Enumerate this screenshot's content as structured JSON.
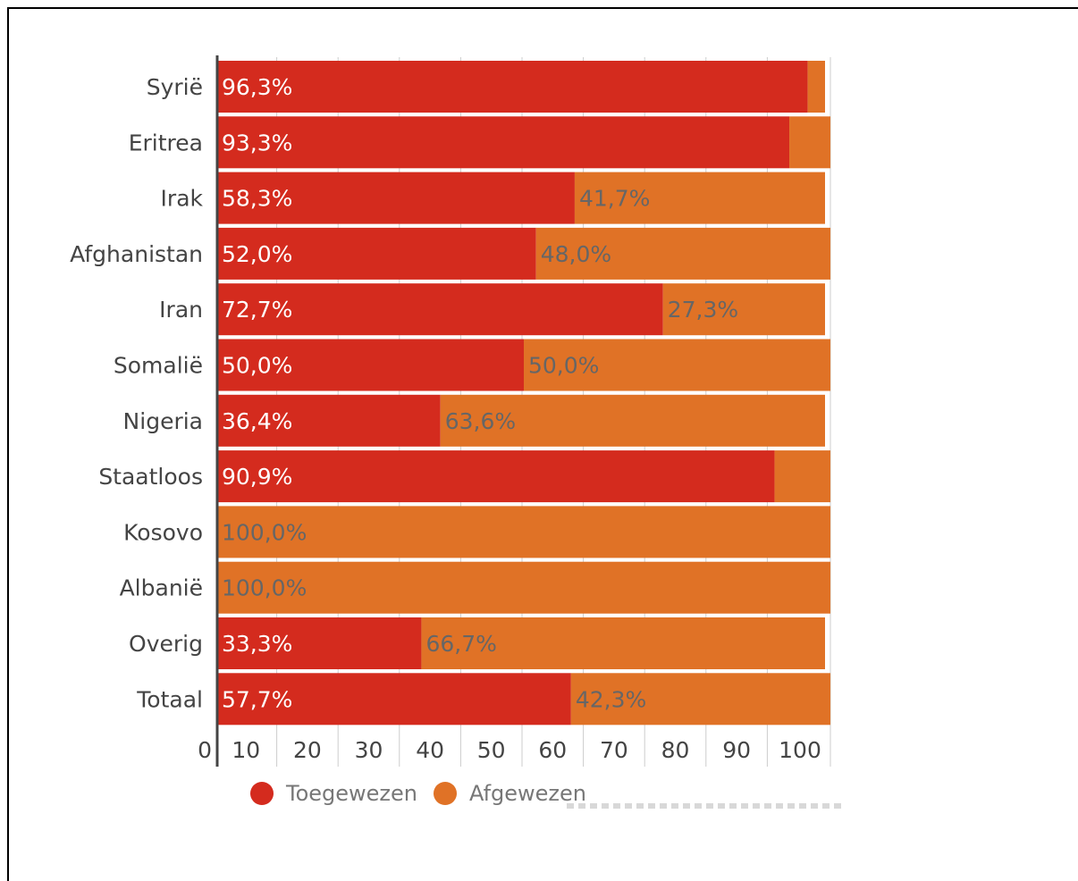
{
  "colors": {
    "toegewezen": "#d42b1e",
    "afgewezen": "#e07226",
    "toegewezen_label": "#ffffff",
    "afgewezen_label": "#666666",
    "axis": "#444444",
    "grid": "#cccccc",
    "category_label": "#444444"
  },
  "chart_data": {
    "type": "bar",
    "orientation": "horizontal",
    "stacked": true,
    "categories": [
      "Syrië",
      "Eritrea",
      "Irak",
      "Afghanistan",
      "Iran",
      "Somalië",
      "Nigeria",
      "Staatloos",
      "Kosovo",
      "Albanië",
      "Overig",
      "Totaal"
    ],
    "series": [
      {
        "name": "Toegewezen",
        "values": [
          96.3,
          93.3,
          58.3,
          52.0,
          72.7,
          50.0,
          36.4,
          90.9,
          0,
          0,
          33.3,
          57.7
        ],
        "labels": [
          "96,3%",
          "93,3%",
          "58,3%",
          "52,0%",
          "72,7%",
          "50,0%",
          "36,4%",
          "90,9%",
          "",
          "",
          "33,3%",
          "57,7%"
        ]
      },
      {
        "name": "Afgewezen",
        "values": [
          3.7,
          6.7,
          41.7,
          48.0,
          27.3,
          50.0,
          63.6,
          9.1,
          100.0,
          100.0,
          66.7,
          42.3
        ],
        "labels": [
          "",
          "",
          "41,7%",
          "48,0%",
          "27,3%",
          "50,0%",
          "63,6%",
          "",
          "100,0%",
          "100,0%",
          "66,7%",
          "42,3%"
        ]
      }
    ],
    "x_ticks": [
      "0",
      "10",
      "20",
      "30",
      "40",
      "50",
      "60",
      "70",
      "80",
      "90",
      "100"
    ],
    "xlim": [
      0,
      100
    ],
    "grid": true,
    "legend_position": "bottom-left"
  },
  "legend": {
    "items": [
      {
        "label": "Toegewezen"
      },
      {
        "label": "Afgewezen"
      }
    ]
  }
}
